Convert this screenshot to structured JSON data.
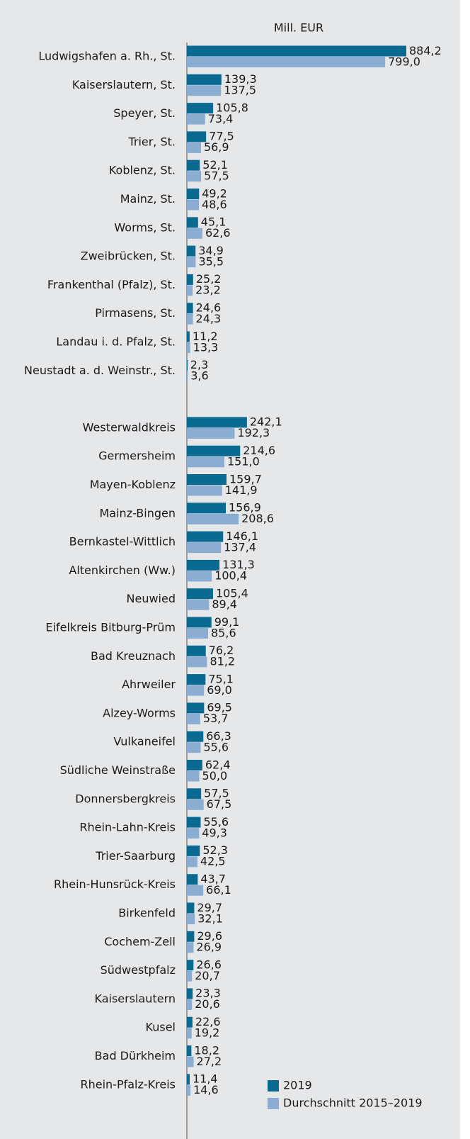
{
  "chart_data": {
    "type": "bar",
    "orientation": "horizontal",
    "unit_label": "Mill. EUR",
    "categories": [
      "Ludwigshafen a. Rh., St.",
      "Kaiserslautern, St.",
      "Speyer, St.",
      "Trier, St.",
      "Koblenz, St.",
      "Mainz, St.",
      "Worms, St.",
      "Zweibrücken, St.",
      "Frankenthal (Pfalz), St.",
      "Pirmasens, St.",
      "Landau i. d. Pfalz, St.",
      "Neustadt a. d. Weinstr., St.",
      null,
      "Westerwaldkreis",
      "Germersheim",
      "Mayen-Koblenz",
      "Mainz-Bingen",
      "Bernkastel-Wittlich",
      "Altenkirchen (Ww.)",
      "Neuwied",
      "Eifelkreis Bitburg-Prüm",
      "Bad Kreuznach",
      "Ahrweiler",
      "Alzey-Worms",
      "Vulkaneifel",
      "Südliche Weinstraße",
      "Donnersbergkreis",
      "Rhein-Lahn-Kreis",
      "Trier-Saarburg",
      "Rhein-Hunsrück-Kreis",
      "Birkenfeld",
      "Cochem-Zell",
      "Südwestpfalz",
      "Kaiserslautern",
      "Kusel",
      "Bad Dürkheim",
      "Rhein-Pfalz-Kreis"
    ],
    "series": [
      {
        "name": "2019",
        "color": "#0a6a92",
        "values": [
          884.2,
          139.3,
          105.8,
          77.5,
          52.1,
          49.2,
          45.1,
          34.9,
          25.2,
          24.6,
          11.2,
          2.3,
          null,
          242.1,
          214.6,
          159.7,
          156.9,
          146.1,
          131.3,
          105.4,
          99.1,
          76.2,
          75.1,
          69.5,
          66.3,
          62.4,
          57.5,
          55.6,
          52.3,
          43.7,
          29.7,
          29.6,
          26.6,
          23.3,
          22.6,
          18.2,
          11.4
        ],
        "value_labels": [
          "884,2",
          "139,3",
          "105,8",
          "77,5",
          "52,1",
          "49,2",
          "45,1",
          "34,9",
          "25,2",
          "24,6",
          "11,2",
          "2,3",
          null,
          "242,1",
          "214,6",
          "159,7",
          "156,9",
          "146,1",
          "131,3",
          "105,4",
          "99,1",
          "76,2",
          "75,1",
          "69,5",
          "66,3",
          "62,4",
          "57,5",
          "55,6",
          "52,3",
          "43,7",
          "29,7",
          "29,6",
          "26,6",
          "23,3",
          "22,6",
          "18,2",
          "11,4"
        ]
      },
      {
        "name": "Durchschnitt 2015–2019",
        "color": "#8aadd1",
        "values": [
          799.0,
          137.5,
          73.4,
          56.9,
          57.5,
          48.6,
          62.6,
          35.5,
          23.2,
          24.3,
          13.3,
          3.6,
          null,
          192.3,
          151.0,
          141.9,
          208.6,
          137.4,
          100.4,
          89.4,
          85.6,
          81.2,
          69.0,
          53.7,
          55.6,
          50.0,
          67.5,
          49.3,
          42.5,
          66.1,
          32.1,
          26.9,
          20.7,
          20.6,
          19.2,
          27.2,
          14.6
        ],
        "value_labels": [
          "799,0",
          "137,5",
          "73,4",
          "56,9",
          "57,5",
          "48,6",
          "62,6",
          "35,5",
          "23,2",
          "24,3",
          "13,3",
          "3,6",
          null,
          "192,3",
          "151,0",
          "141,9",
          "208,6",
          "137,4",
          "100,4",
          "89,4",
          "85,6",
          "81,2",
          "69,0",
          "53,7",
          "55,6",
          "50,0",
          "67,5",
          "49,3",
          "42,5",
          "66,1",
          "32,1",
          "26,9",
          "20,7",
          "20,6",
          "19,2",
          "27,2",
          "14,6"
        ]
      }
    ]
  }
}
